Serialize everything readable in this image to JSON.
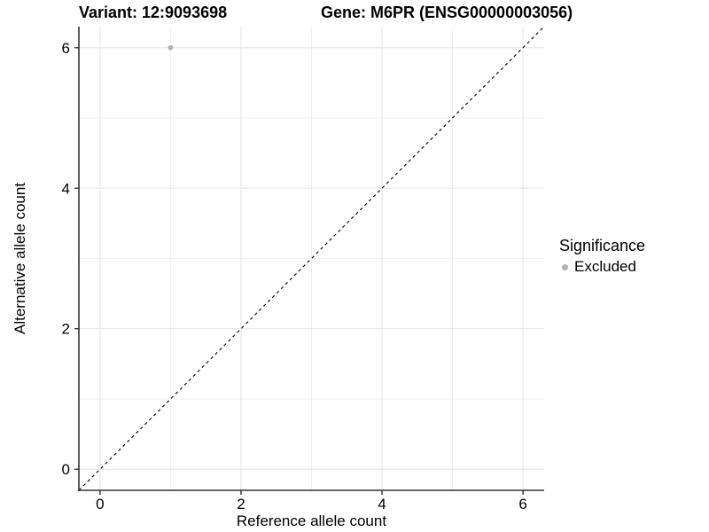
{
  "header": {
    "title_left": "Variant: 12:9093698",
    "title_right": "Gene: M6PR (ENSG00000003056)"
  },
  "chart_data": {
    "type": "scatter",
    "xlabel": "Reference allele count",
    "ylabel": "Alternative allele count",
    "xlim": [
      -0.3,
      6.3
    ],
    "ylim": [
      -0.3,
      6.3
    ],
    "x_ticks": [
      0,
      2,
      4,
      6
    ],
    "y_ticks": [
      0,
      2,
      4,
      6
    ],
    "x_minor_ticks": [
      1,
      3,
      5
    ],
    "y_minor_ticks": [
      1,
      3,
      5
    ],
    "grid": true,
    "series": [
      {
        "name": "Excluded",
        "color": "#b4b4b4",
        "points": [
          {
            "x": 1,
            "y": 6
          }
        ]
      }
    ],
    "reference_line": {
      "type": "identity",
      "style": "dashed",
      "from": [
        -0.3,
        -0.3
      ],
      "to": [
        6.3,
        6.3
      ],
      "color": "#000000"
    },
    "legend": {
      "title": "Significance",
      "position": "right",
      "items": [
        {
          "label": "Excluded",
          "color": "#b4b4b4"
        }
      ]
    },
    "colors": {
      "grid_major": "#e4e4e4",
      "grid_minor": "#f0f0f0",
      "axis_line": "#333333",
      "tick_label": "#000000"
    }
  }
}
